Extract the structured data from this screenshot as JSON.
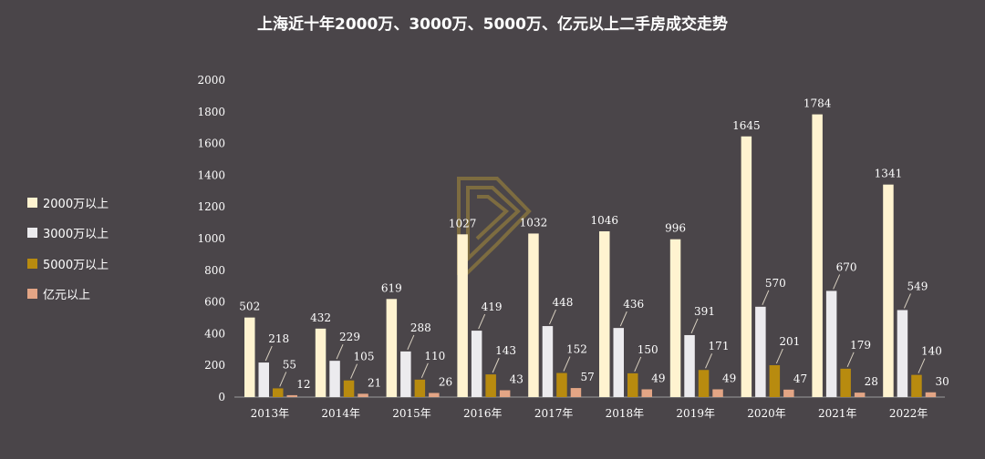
{
  "chart_data": {
    "type": "bar",
    "title": "上海近十年2000万、3000万、5000万、亿元以上二手房成交走势",
    "categories": [
      "2013年",
      "2014年",
      "2015年",
      "2016年",
      "2017年",
      "2018年",
      "2019年",
      "2020年",
      "2021年",
      "2022年"
    ],
    "series": [
      {
        "name": "2000万以上",
        "color": "#fff3d0",
        "values": [
          502,
          432,
          619,
          1027,
          1032,
          1046,
          996,
          1645,
          1784,
          1341
        ]
      },
      {
        "name": "3000万以上",
        "color": "#ecebee",
        "values": [
          218,
          229,
          288,
          419,
          448,
          436,
          391,
          570,
          670,
          549
        ]
      },
      {
        "name": "5000万以上",
        "color": "#b88b0f",
        "values": [
          55,
          105,
          110,
          143,
          152,
          150,
          171,
          201,
          179,
          140
        ]
      },
      {
        "name": "亿元以上",
        "color": "#e3a585",
        "values": [
          12,
          21,
          26,
          43,
          57,
          49,
          49,
          47,
          28,
          30
        ]
      }
    ],
    "yticks": [
      "0",
      "200",
      "400",
      "600",
      "800",
      "1000",
      "1200",
      "1400",
      "1600",
      "1800",
      "2000"
    ],
    "ylim": [
      0,
      2000
    ],
    "grid": false,
    "legend": "left"
  }
}
